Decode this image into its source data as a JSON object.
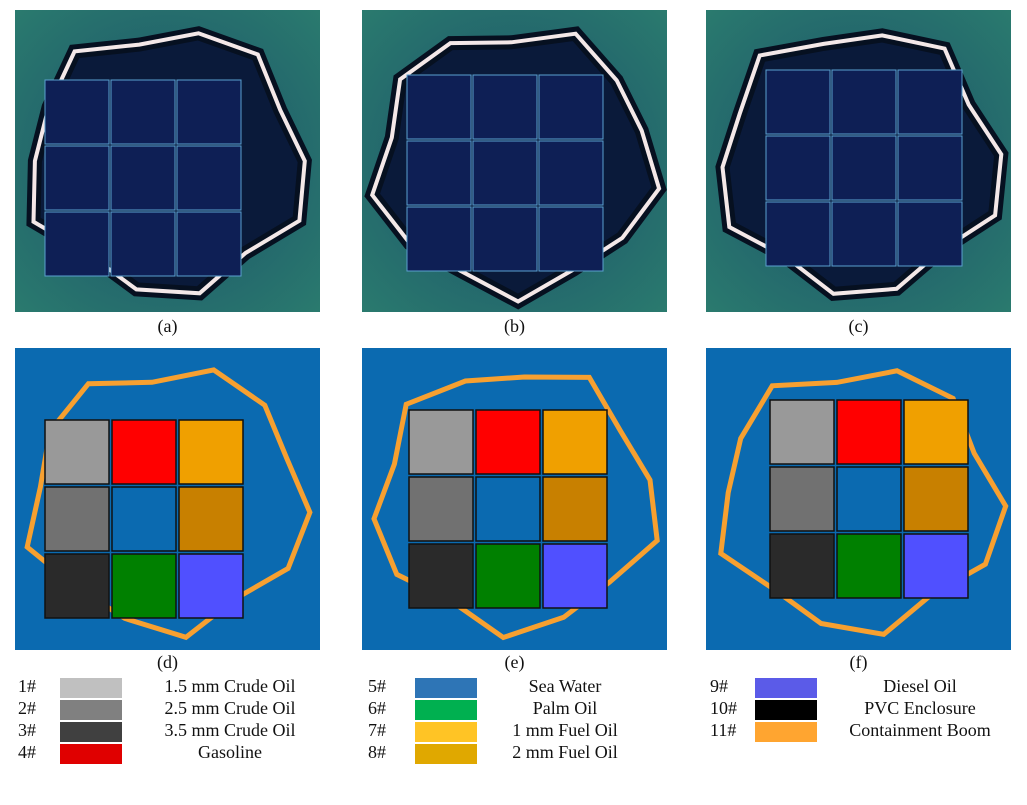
{
  "figure": {
    "captions": [
      "(a)",
      "(b)",
      "(c)",
      "(d)",
      "(e)",
      "(f)"
    ],
    "legend": [
      {
        "number": "1#",
        "color": "#c0c0c0",
        "label": "1.5 mm Crude Oil"
      },
      {
        "number": "2#",
        "color": "#808080",
        "label": "2.5 mm Crude Oil"
      },
      {
        "number": "3#",
        "color": "#404040",
        "label": "3.5 mm Crude Oil"
      },
      {
        "number": "4#",
        "color": "#e00000",
        "label": "Gasoline"
      },
      {
        "number": "5#",
        "color": "#2e75b6",
        "label": "Sea Water"
      },
      {
        "number": "6#",
        "color": "#00b050",
        "label": "Palm Oil"
      },
      {
        "number": "7#",
        "color": "#ffc425",
        "label": "1 mm Fuel Oil"
      },
      {
        "number": "8#",
        "color": "#e0a800",
        "label": "2 mm Fuel Oil"
      },
      {
        "number": "9#",
        "color": "#5b5be8",
        "label": "Diesel Oil"
      },
      {
        "number": "10#",
        "color": "#000000",
        "label": "PVC Enclosure"
      },
      {
        "number": "11#",
        "color": "#ffa530",
        "label": "Containment Boom"
      }
    ]
  }
}
